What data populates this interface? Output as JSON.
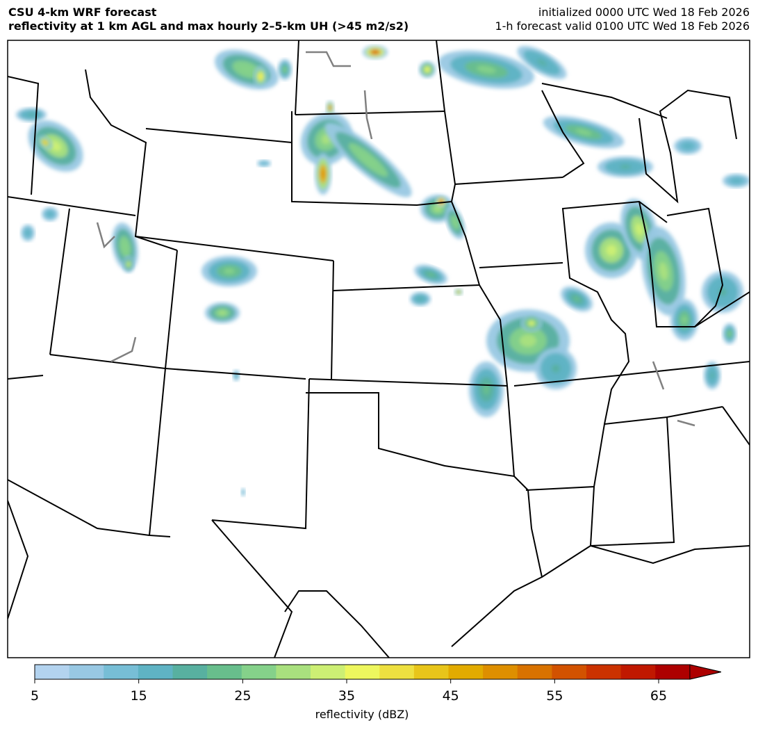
{
  "header": {
    "title_line1": "CSU 4-km WRF forecast",
    "title_line2": "reflectivity at 1 km AGL and max hourly 2–5-km UH (>45 m2/s2)",
    "init_line": "initialized 0000 UTC Wed 18 Feb 2026",
    "valid_line": "1-h forecast valid 0100 UTC Wed 18 Feb 2026"
  },
  "colorbar": {
    "label": "reflectivity (dBZ)",
    "ticks": [
      "5",
      "15",
      "25",
      "35",
      "45",
      "55",
      "65"
    ],
    "min": 5,
    "max": 68,
    "extend": "max",
    "colors": [
      "#b3d3ef",
      "#98c8e3",
      "#77bed6",
      "#5fb3c4",
      "#58b0a0",
      "#68be8c",
      "#85d18a",
      "#a9e07e",
      "#cdef74",
      "#eef75e",
      "#eee040",
      "#e8c51a",
      "#e2ab00",
      "#de8f00",
      "#d87200",
      "#d25200",
      "#cb3200",
      "#c01800",
      "#ad0000"
    ]
  },
  "map": {
    "border_color": "#000000",
    "lake_color": "#808080"
  }
}
